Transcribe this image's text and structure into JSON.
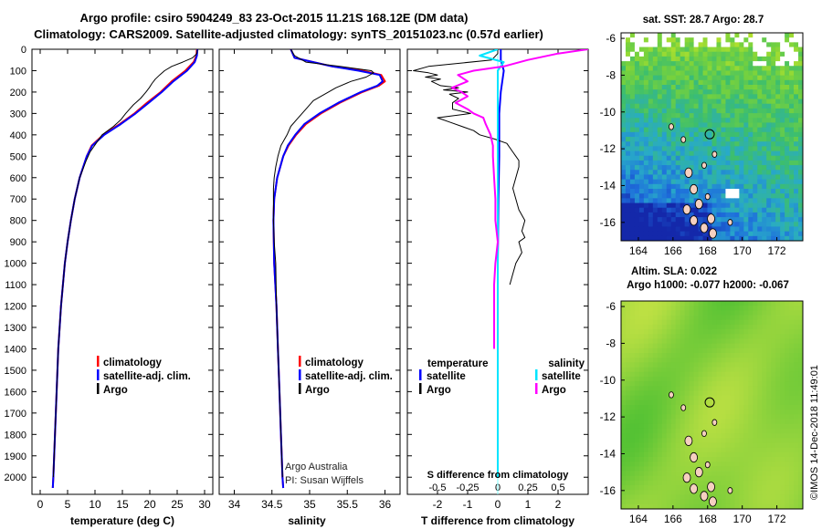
{
  "title": {
    "line1": "Argo profile: csiro 5904249_83 23-Oct-2015 11.21S 168.12E (DM data)",
    "line2": "Climatology: CARS2009. Satellite-adjusted climatology: synTS_20151023.nc (0.57d earlier)"
  },
  "depth_ticks": [
    0,
    100,
    200,
    300,
    400,
    500,
    600,
    700,
    800,
    900,
    1000,
    1100,
    1200,
    1300,
    1400,
    1500,
    1600,
    1700,
    1800,
    1900,
    2000
  ],
  "colors": {
    "climatology": "#ff0000",
    "satellite": "#0000ff",
    "argo": "#000000",
    "salinity_satellite": "#00e5ff",
    "salinity_argo": "#ff00ff",
    "zero_line": "#80ffff"
  },
  "chart_data": [
    {
      "type": "line",
      "name": "temperature",
      "xlabel": "temperature (deg C)",
      "ylabel": "depth",
      "xlim": [
        -1.5,
        31.5
      ],
      "ylim": [
        2080,
        0
      ],
      "xticks": [
        0,
        5,
        10,
        15,
        20,
        25,
        30
      ],
      "xtick_labels": [
        "0",
        "5",
        "10",
        "15",
        "20",
        "25",
        "30"
      ],
      "legend": [
        "climatology",
        "satellite-adj. clim.",
        "Argo"
      ],
      "series": [
        {
          "name": "climatology",
          "color": "#ff0000",
          "width": 2,
          "depth": [
            0,
            30,
            60,
            100,
            150,
            200,
            250,
            300,
            350,
            400,
            450,
            500,
            600,
            700,
            800,
            900,
            1000,
            1200,
            1400,
            1600,
            1800,
            2000,
            2050
          ],
          "values": [
            28.6,
            28.5,
            28.0,
            26.5,
            24.0,
            22.0,
            19.5,
            17.2,
            14.5,
            11.5,
            9.4,
            8.5,
            7.2,
            6.3,
            5.6,
            5.0,
            4.5,
            3.8,
            3.3,
            3.0,
            2.7,
            2.4,
            2.3
          ]
        },
        {
          "name": "satellite-adj. clim.",
          "color": "#0000ff",
          "width": 2,
          "depth": [
            0,
            30,
            60,
            100,
            150,
            200,
            250,
            300,
            350,
            400,
            450,
            500,
            600,
            700,
            800,
            900,
            1000,
            1200,
            1400,
            1600,
            1800,
            2000,
            2050
          ],
          "values": [
            28.7,
            28.6,
            28.2,
            26.8,
            24.3,
            22.2,
            19.8,
            17.4,
            14.7,
            11.7,
            9.5,
            8.5,
            7.2,
            6.3,
            5.6,
            5.0,
            4.5,
            3.8,
            3.3,
            3.0,
            2.7,
            2.4,
            2.3
          ]
        },
        {
          "name": "Argo",
          "color": "#000000",
          "width": 1,
          "depth": [
            0,
            20,
            40,
            60,
            80,
            100,
            120,
            140,
            160,
            180,
            200,
            230,
            260,
            280,
            300,
            330,
            360,
            400,
            440,
            480,
            520,
            600,
            700,
            800,
            900,
            1000,
            1200,
            1400,
            1600,
            1800,
            2000
          ],
          "values": [
            28.7,
            28.6,
            27.8,
            26.0,
            24.0,
            22.7,
            21.8,
            21.0,
            20.4,
            19.9,
            19.3,
            18.3,
            17.0,
            16.3,
            15.6,
            14.7,
            13.4,
            11.3,
            10.2,
            9.1,
            8.4,
            7.2,
            6.3,
            5.6,
            5.0,
            4.5,
            3.8,
            3.3,
            3.0,
            2.7,
            2.4
          ]
        }
      ]
    },
    {
      "type": "line",
      "name": "salinity",
      "xlabel": "salinity",
      "ylabel": "depth",
      "xlim": [
        33.8,
        36.2
      ],
      "ylim": [
        2080,
        0
      ],
      "xticks": [
        34,
        34.5,
        35,
        35.5,
        36
      ],
      "xtick_labels": [
        "34",
        "34.5",
        "35",
        "35.5",
        "36"
      ],
      "legend": [
        "climatology",
        "satellite-adj. clim.",
        "Argo"
      ],
      "credit": [
        "Argo Australia",
        "PI: Susan Wijffels"
      ],
      "series": [
        {
          "name": "climatology",
          "color": "#ff0000",
          "width": 2,
          "depth": [
            0,
            40,
            80,
            100,
            120,
            150,
            170,
            200,
            250,
            300,
            350,
            400,
            450,
            500,
            600,
            700,
            800,
            1000,
            1200,
            1400,
            1600,
            1800,
            2000,
            2050
          ],
          "values": [
            34.75,
            34.8,
            35.3,
            35.7,
            35.95,
            36.0,
            35.92,
            35.7,
            35.4,
            35.15,
            34.95,
            34.82,
            34.72,
            34.65,
            34.57,
            34.53,
            34.52,
            34.53,
            34.56,
            34.58,
            34.6,
            34.62,
            34.64,
            34.65
          ]
        },
        {
          "name": "satellite-adj. clim.",
          "color": "#0000ff",
          "width": 2,
          "depth": [
            0,
            40,
            80,
            100,
            120,
            150,
            170,
            200,
            250,
            300,
            350,
            400,
            450,
            500,
            600,
            700,
            800,
            1000,
            1200,
            1400,
            1600,
            1800,
            2000,
            2050
          ],
          "values": [
            34.75,
            34.8,
            35.3,
            35.65,
            35.93,
            35.97,
            35.9,
            35.68,
            35.38,
            35.13,
            34.93,
            34.81,
            34.71,
            34.65,
            34.57,
            34.53,
            34.52,
            34.53,
            34.56,
            34.58,
            34.6,
            34.62,
            34.64,
            34.65
          ]
        },
        {
          "name": "Argo",
          "color": "#000000",
          "width": 1,
          "depth": [
            0,
            30,
            60,
            80,
            100,
            110,
            130,
            150,
            180,
            200,
            240,
            280,
            320,
            360,
            400,
            450,
            500,
            550,
            600,
            650,
            700,
            800,
            900,
            1000,
            1200,
            1400,
            1600,
            1800,
            2000
          ],
          "values": [
            34.75,
            34.8,
            34.95,
            35.4,
            35.82,
            35.85,
            35.75,
            35.55,
            35.35,
            35.25,
            35.05,
            34.95,
            34.85,
            34.75,
            34.7,
            34.62,
            34.58,
            34.55,
            34.53,
            34.52,
            34.52,
            34.52,
            34.53,
            34.55,
            34.56,
            34.58,
            34.6,
            34.62,
            34.64
          ]
        }
      ]
    },
    {
      "type": "line",
      "name": "difference",
      "xlabel": "T difference from climatology",
      "xlabel_top": "S difference from climatology",
      "ylabel": "depth",
      "xlim": [
        -3,
        3
      ],
      "ylim": [
        2080,
        0
      ],
      "xticks": [
        -2,
        -1,
        0,
        1,
        2
      ],
      "xtick_labels": [
        "-2",
        "-1",
        "0",
        "1",
        "2"
      ],
      "top_ticks": [
        -0.5,
        -0.25,
        0,
        0.25,
        0.5
      ],
      "top_tick_labels": [
        "-0.5",
        "-0.25",
        "0",
        "0.25",
        "0.5"
      ],
      "legend_left_title": "temperature",
      "legend_right_title": "salinity",
      "legend_left": [
        "satellite",
        "Argo"
      ],
      "legend_right": [
        "satellite",
        "Argo"
      ],
      "series": [
        {
          "name": "T satellite",
          "color": "#0000ff",
          "width": 2,
          "depth": [
            0,
            50,
            100,
            200,
            300,
            400,
            500,
            700,
            1000,
            1500,
            2000
          ],
          "values": [
            0.1,
            0.1,
            0.2,
            0.1,
            0.05,
            0.05,
            0.05,
            0.02,
            0.0,
            0.0,
            0.0
          ]
        },
        {
          "name": "T Argo",
          "color": "#000000",
          "width": 1,
          "depth": [
            0,
            20,
            50,
            80,
            100,
            110,
            120,
            130,
            140,
            150,
            170,
            180,
            190,
            200,
            210,
            230,
            250,
            280,
            300,
            320,
            340,
            360,
            380,
            400,
            420,
            440,
            480,
            500,
            520,
            550,
            600,
            650,
            700,
            750,
            800,
            850,
            880,
            900,
            950,
            1000,
            1050,
            1100
          ],
          "values": [
            0,
            0,
            -0.2,
            -2.3,
            -2.8,
            -2.3,
            -2.0,
            -2.4,
            -1.9,
            -2.2,
            -1.9,
            -1.3,
            -1.8,
            -1.0,
            -1.6,
            -1.3,
            -1.5,
            -1.5,
            -0.9,
            -2.0,
            -1.6,
            -1.2,
            -0.8,
            -0.6,
            -0.1,
            0.3,
            0.5,
            0.6,
            0.7,
            0.7,
            0.6,
            0.5,
            0.6,
            0.7,
            0.9,
            0.8,
            0.9,
            0.7,
            0.8,
            0.6,
            0.5,
            0.4
          ]
        },
        {
          "name": "S satellite",
          "color": "#00e5ff",
          "width": 2,
          "depth": [
            0,
            30,
            60,
            100,
            200,
            400,
            700,
            1000,
            1500,
            2000
          ],
          "values": [
            0.0,
            -0.15,
            0.05,
            0.0,
            0.0,
            0.0,
            0.0,
            0.0,
            0.0,
            0.0
          ]
        },
        {
          "name": "S Argo",
          "color": "#ff00ff",
          "width": 2,
          "depth": [
            0,
            20,
            50,
            80,
            100,
            120,
            150,
            180,
            200,
            220,
            250,
            280,
            300,
            320,
            350,
            400,
            450,
            500,
            600,
            700,
            800,
            900,
            1000,
            1100,
            1200,
            1300,
            1400
          ],
          "values": [
            0.75,
            0.5,
            0.25,
            0.05,
            -0.2,
            -0.33,
            -0.25,
            -0.38,
            -0.3,
            -0.25,
            -0.35,
            -0.25,
            -0.2,
            -0.12,
            -0.1,
            -0.06,
            -0.04,
            -0.04,
            -0.03,
            -0.02,
            -0.02,
            0.0,
            -0.02,
            -0.03,
            -0.03,
            -0.03,
            -0.03
          ]
        }
      ]
    },
    {
      "type": "heatmap",
      "name": "sat-sst-map",
      "title": "sat. SST: 28.7 Argo: 28.7",
      "xlim": [
        163,
        173.5
      ],
      "ylim": [
        -17,
        -5.7
      ],
      "xticks": [
        164,
        166,
        168,
        170,
        172
      ],
      "xtick_labels": [
        "164",
        "166",
        "168",
        "170",
        "172"
      ],
      "yticks": [
        -6,
        -8,
        -10,
        -12,
        -14,
        -16
      ],
      "ytick_labels": [
        "-6",
        "-8",
        "-10",
        "-12",
        "-14",
        "-16"
      ],
      "marker": {
        "lon": 168.12,
        "lat": -11.21
      }
    },
    {
      "type": "heatmap",
      "name": "altimetry-map",
      "title_lines": [
        "Altim. SLA: 0.022",
        "Argo h1000: -0.077 h2000: -0.067"
      ],
      "xlim": [
        163,
        173.5
      ],
      "ylim": [
        -17,
        -5.7
      ],
      "xticks": [
        164,
        166,
        168,
        170,
        172
      ],
      "xtick_labels": [
        "164",
        "166",
        "168",
        "170",
        "172"
      ],
      "yticks": [
        -6,
        -8,
        -10,
        -12,
        -14,
        -16
      ],
      "ytick_labels": [
        "-6",
        "-8",
        "-10",
        "-12",
        "-14",
        "-16"
      ],
      "marker": {
        "lon": 168.12,
        "lat": -11.21
      }
    }
  ],
  "side_label": "©IMOS 14-Dec-2018 11:49:01"
}
